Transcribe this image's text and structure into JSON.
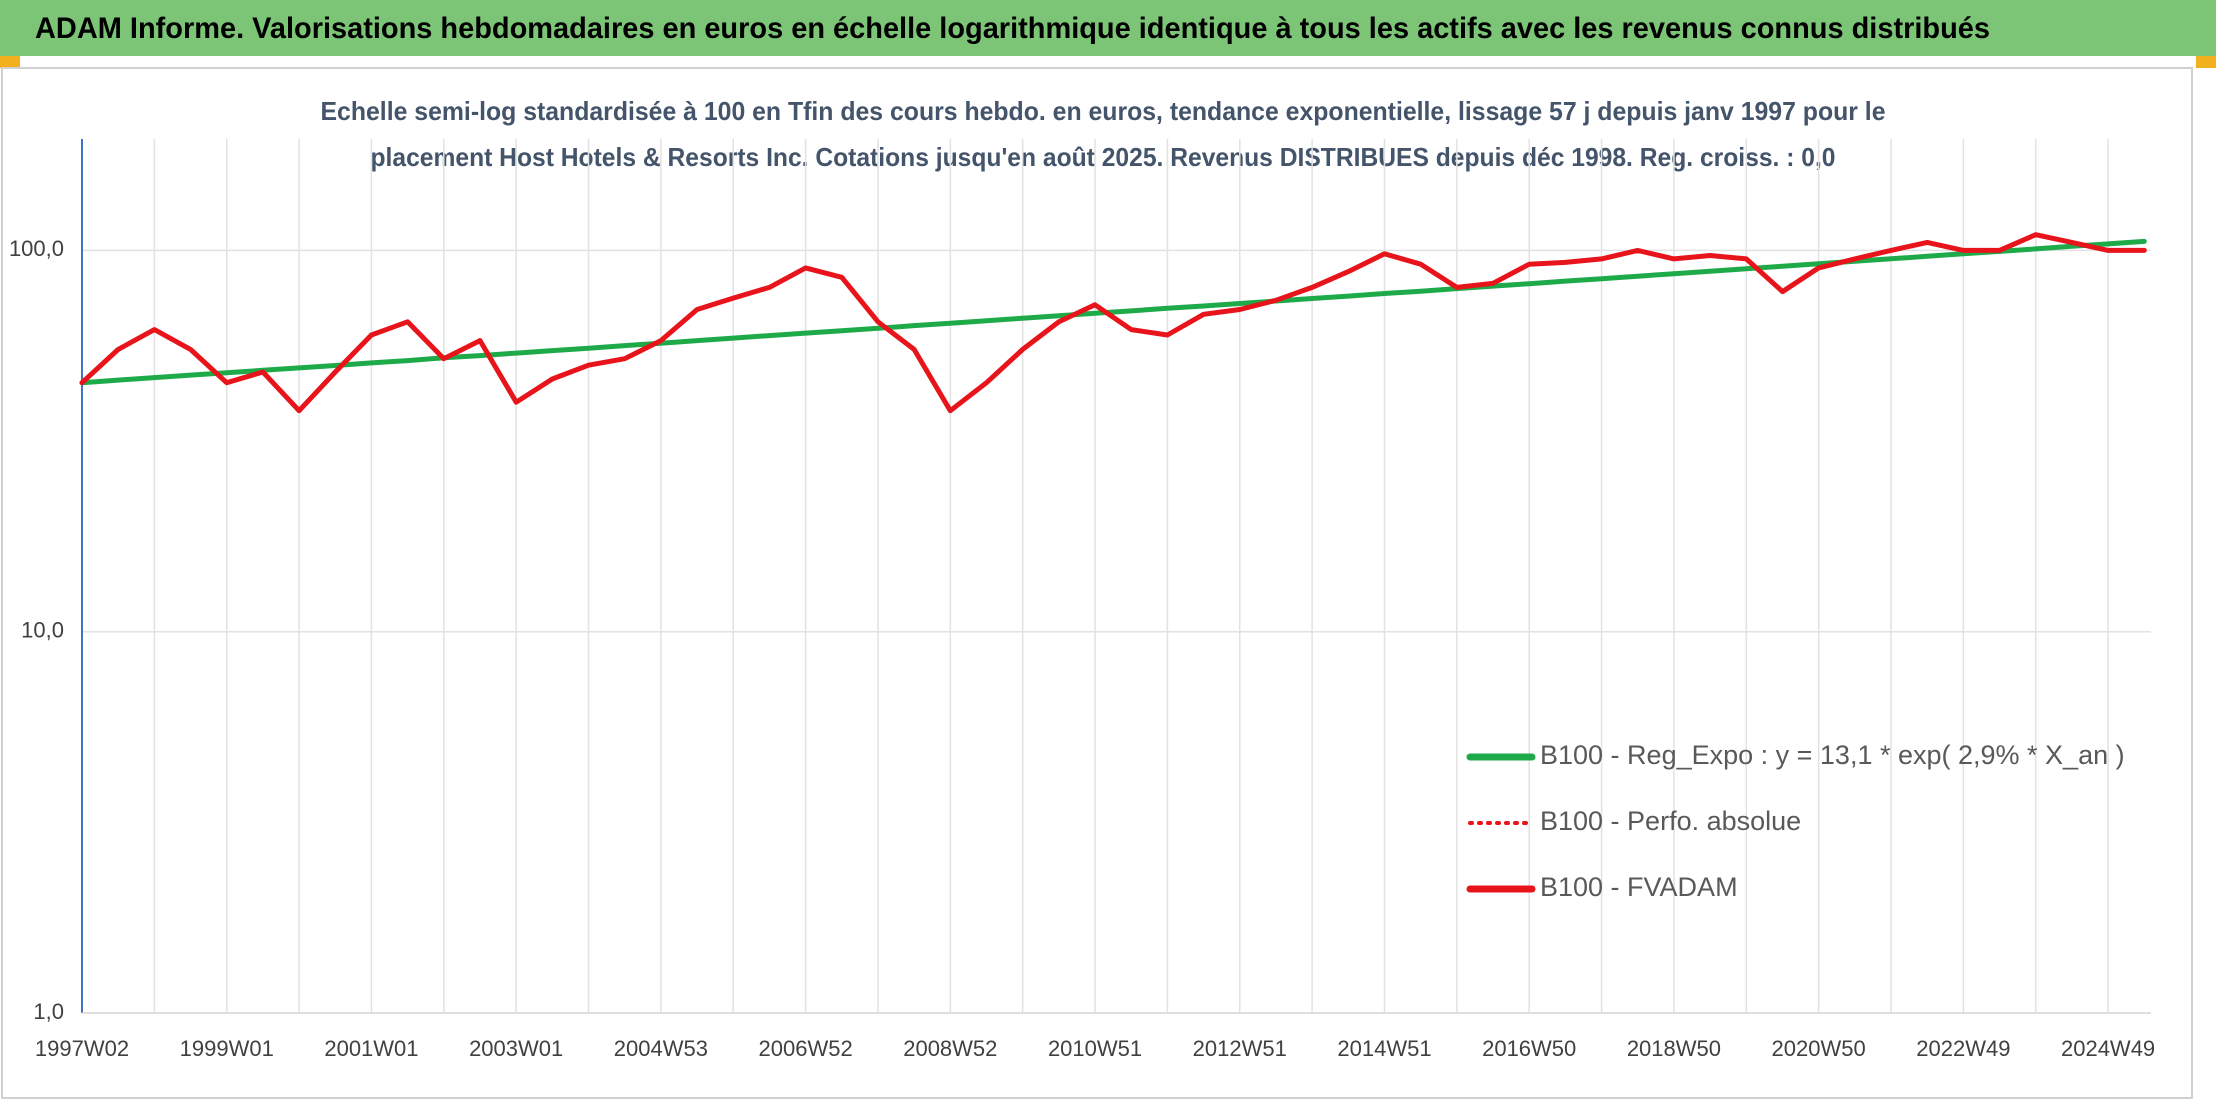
{
  "chart_data": {
    "type": "line",
    "title": "ADAM Informe. Valorisations hebdomadaires en euros en échelle logarithmique identique à tous les actifs avec les revenus connus distribués",
    "subtitle_lines": [
      "Echelle semi-log standardisée à 100 en Tfin des cours hebdo. en euros, tendance exponentielle, lissage 57 j depuis janv 1997 pour le",
      "placement Host Hotels & Resorts Inc. Cotations jusqu'en août 2025. Revenus DISTRIBUES depuis déc 1998. Reg. croiss. : 0,0"
    ],
    "categories": [
      "1997W02",
      null,
      null,
      null,
      "1999W01",
      null,
      null,
      null,
      "2001W01",
      null,
      null,
      null,
      "2003W01",
      null,
      null,
      null,
      "2004W53",
      null,
      null,
      null,
      "2006W52",
      null,
      null,
      null,
      "2008W52",
      null,
      null,
      null,
      "2010W51",
      null,
      null,
      null,
      "2012W51",
      null,
      null,
      null,
      "2014W51",
      null,
      null,
      null,
      "2016W50",
      null,
      null,
      null,
      "2018W50",
      null,
      null,
      null,
      "2020W50",
      null,
      null,
      null,
      "2022W49",
      null,
      null,
      null,
      "2024W49",
      null
    ],
    "log_scale": true,
    "ylim": [
      1,
      196
    ],
    "yticks": [
      {
        "value": 1,
        "label": "1,0"
      },
      {
        "value": 10,
        "label": "10,0"
      },
      {
        "value": 100,
        "label": "100,0"
      }
    ],
    "grid": true,
    "legend_position": "lower-right",
    "series": [
      {
        "name": "B100 - Reg_Expo : y = 13,1 * exp( 2,9% *  X_an )",
        "color": "#1faa4a",
        "style": "solid",
        "values": [
          45.0,
          45.7,
          46.4,
          47.1,
          47.8,
          48.5,
          49.2,
          49.9,
          50.7,
          51.4,
          52.3,
          53.0,
          53.8,
          54.6,
          55.4,
          56.3,
          57.1,
          58.0,
          58.9,
          59.8,
          60.7,
          61.6,
          62.5,
          63.5,
          64.4,
          65.4,
          66.4,
          67.4,
          68.4,
          69.4,
          70.5,
          71.5,
          72.6,
          73.7,
          74.8,
          75.9,
          77.1,
          78.2,
          79.4,
          80.6,
          81.8,
          83.1,
          84.3,
          85.6,
          86.9,
          88.2,
          89.5,
          90.9,
          92.3,
          93.7,
          95.1,
          96.5,
          98.0,
          99.4,
          100.9,
          102.5,
          104.0,
          105.6
        ]
      },
      {
        "name": "B100 - Perfo. absolue",
        "color": "#e8141b",
        "style": "dotted",
        "values": [
          45,
          55,
          62,
          55,
          45,
          48,
          38,
          48,
          60,
          65,
          52,
          58,
          40,
          46,
          50,
          52,
          58,
          70,
          75,
          80,
          90,
          85,
          65,
          55,
          38,
          45,
          55,
          65,
          72,
          62,
          60,
          68,
          70,
          74,
          80,
          88,
          98,
          92,
          80,
          82,
          92,
          93,
          95,
          100,
          95,
          97,
          95,
          78,
          90,
          95,
          100,
          105,
          100,
          100,
          110,
          105,
          100,
          100
        ]
      },
      {
        "name": "B100 - FVADAM",
        "color": "#e8141b",
        "style": "solid",
        "values": [
          45,
          55,
          62,
          55,
          45,
          48,
          38,
          48,
          60,
          65,
          52,
          58,
          40,
          46,
          50,
          52,
          58,
          70,
          75,
          80,
          90,
          85,
          65,
          55,
          38,
          45,
          55,
          65,
          72,
          62,
          60,
          68,
          70,
          74,
          80,
          88,
          98,
          92,
          80,
          82,
          92,
          93,
          95,
          100,
          95,
          97,
          95,
          78,
          90,
          95,
          100,
          105,
          100,
          100,
          110,
          105,
          100,
          100
        ]
      }
    ]
  }
}
